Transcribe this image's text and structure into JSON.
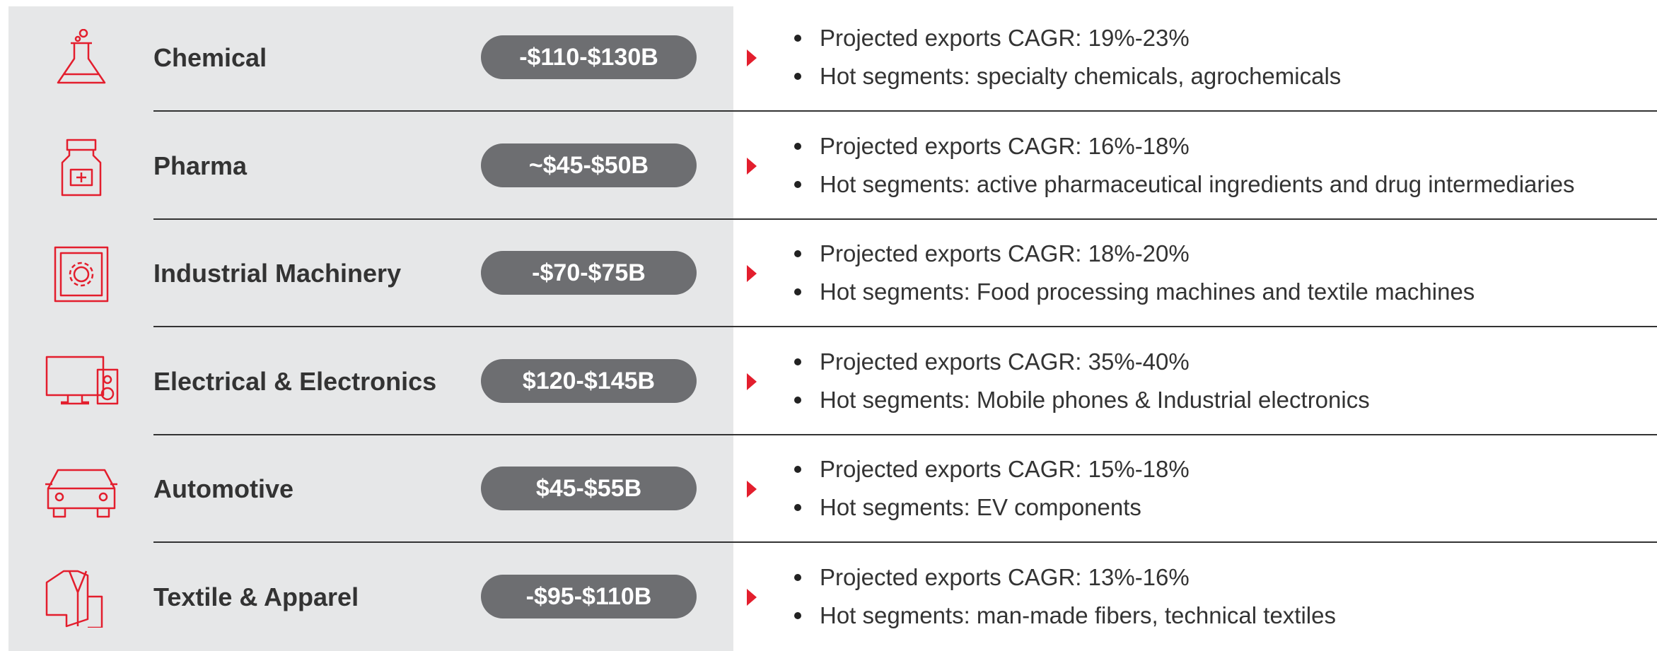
{
  "rows": [
    {
      "name": "Chemical",
      "value": "-$110-$130B",
      "bullets": [
        "Projected exports CAGR: 19%-23%",
        "Hot segments: specialty chemicals, agrochemicals"
      ]
    },
    {
      "name": "Pharma",
      "value": "~$45-$50B",
      "bullets": [
        "Projected exports CAGR: 16%-18%",
        "Hot segments: active pharmaceutical ingredients and drug intermediaries"
      ]
    },
    {
      "name": "Industrial Machinery",
      "value": "-$70-$75B",
      "bullets": [
        "Projected exports CAGR: 18%-20%",
        "Hot segments: Food processing machines and textile machines"
      ]
    },
    {
      "name": "Electrical & Electronics",
      "value": "$120-$145B",
      "bullets": [
        "Projected exports CAGR: 35%-40%",
        "Hot segments: Mobile phones & Industrial electronics"
      ]
    },
    {
      "name": "Automotive",
      "value": "$45-$55B",
      "bullets": [
        "Projected exports CAGR: 15%-18%",
        "Hot segments: EV components"
      ]
    },
    {
      "name": "Textile & Apparel",
      "value": "-$95-$110B",
      "bullets": [
        "Projected exports CAGR: 13%-16%",
        "Hot segments: man-made fibers, technical textiles"
      ]
    }
  ]
}
